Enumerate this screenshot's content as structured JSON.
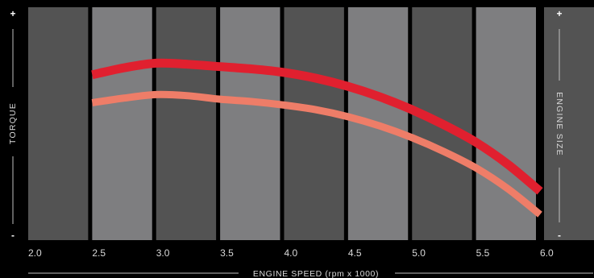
{
  "chart_data": {
    "type": "line",
    "title": "",
    "xlabel": "ENGINE SPEED (rpm x 1000)",
    "ylabel": "TORQUE",
    "right_label": "ENGINE SIZE",
    "ylabel_plus": "+",
    "ylabel_minus": "-",
    "right_plus": "+",
    "right_minus": "-",
    "x_ticks": [
      "2.0",
      "2.5",
      "3.0",
      "3.5",
      "4.0",
      "4.5",
      "5.0",
      "5.5",
      "6.0"
    ],
    "xlim": [
      2.0,
      6.0
    ],
    "ylim": [
      0,
      100
    ],
    "grid": false,
    "bands": {
      "colors": [
        "#535353",
        "#7e7e80"
      ]
    },
    "series": [
      {
        "color": "#e0202f",
        "x": [
          2.5,
          2.75,
          3.0,
          3.25,
          3.5,
          3.75,
          4.0,
          4.25,
          4.5,
          4.75,
          5.0,
          5.25,
          5.5,
          5.75,
          6.0
        ],
        "y": [
          71,
          74,
          76,
          75.5,
          74.5,
          73.5,
          72,
          69.5,
          66,
          61.5,
          56,
          49.5,
          42,
          32.5,
          21
        ]
      },
      {
        "color": "#ee7d68",
        "x": [
          2.5,
          2.75,
          3.0,
          3.25,
          3.5,
          3.75,
          4.0,
          4.25,
          4.5,
          4.75,
          5.0,
          5.25,
          5.5,
          5.75,
          6.0
        ],
        "y": [
          59,
          61,
          62.5,
          62,
          60.5,
          59.5,
          58,
          56,
          53,
          49,
          44,
          38,
          31,
          22,
          11
        ]
      }
    ]
  }
}
